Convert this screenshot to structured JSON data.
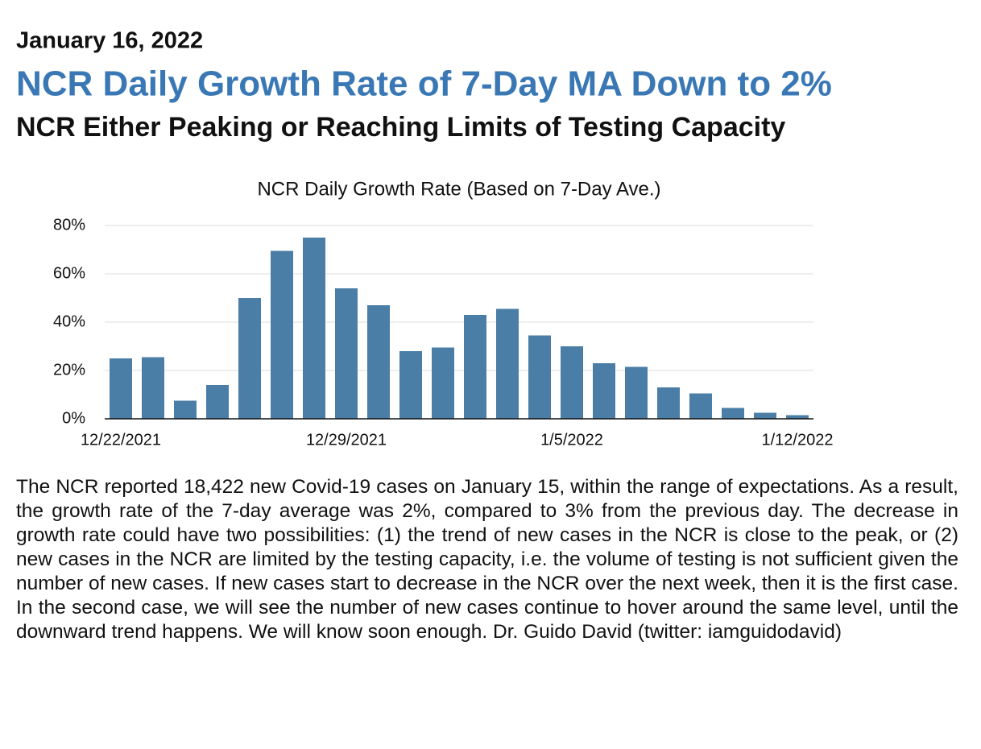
{
  "header": {
    "date": "January 16, 2022",
    "headline": "NCR Daily Growth Rate of 7-Day MA Down to 2%",
    "subheadline": "NCR Either Peaking or Reaching Limits of Testing Capacity"
  },
  "chart_data": {
    "type": "bar",
    "title": "NCR Daily Growth Rate (Based on 7-Day Ave.)",
    "categories": [
      "12/22/2021",
      null,
      null,
      null,
      null,
      null,
      null,
      "12/29/2021",
      null,
      null,
      null,
      null,
      null,
      null,
      "1/5/2022",
      null,
      null,
      null,
      null,
      null,
      null,
      "1/12/2022"
    ],
    "values": [
      25,
      25.5,
      7.5,
      14,
      50,
      69.5,
      75,
      54,
      47,
      28,
      29.5,
      43,
      45.5,
      34.5,
      30,
      23,
      21.5,
      13,
      10.5,
      4.5,
      2.5,
      1.5
    ],
    "color": "#4a7ea6",
    "ylim": [
      0,
      80
    ],
    "yticks": [
      {
        "value": 0,
        "label": "0%"
      },
      {
        "value": 20,
        "label": "20%"
      },
      {
        "value": 40,
        "label": "40%"
      },
      {
        "value": 60,
        "label": "60%"
      },
      {
        "value": 80,
        "label": "80%"
      }
    ],
    "grid": true
  },
  "body": {
    "paragraph": "The NCR reported 18,422 new Covid-19 cases on January 15, within the range of expectations. As a result, the growth rate of the 7-day average was 2%, compared to 3% from the previous day. The decrease in growth rate could have two possibilities: (1) the trend of new cases in the NCR is close to the peak, or (2) new cases in the NCR are limited by the testing capacity, i.e. the volume of testing is not sufficient given the number of new cases. If new cases start to decrease in the NCR over the next week, then it is the first case. In the second case, we will see the number of new cases continue to hover around the same level, until the downward trend happens. We will know soon enough. Dr. Guido David (twitter: iamguidodavid)"
  }
}
